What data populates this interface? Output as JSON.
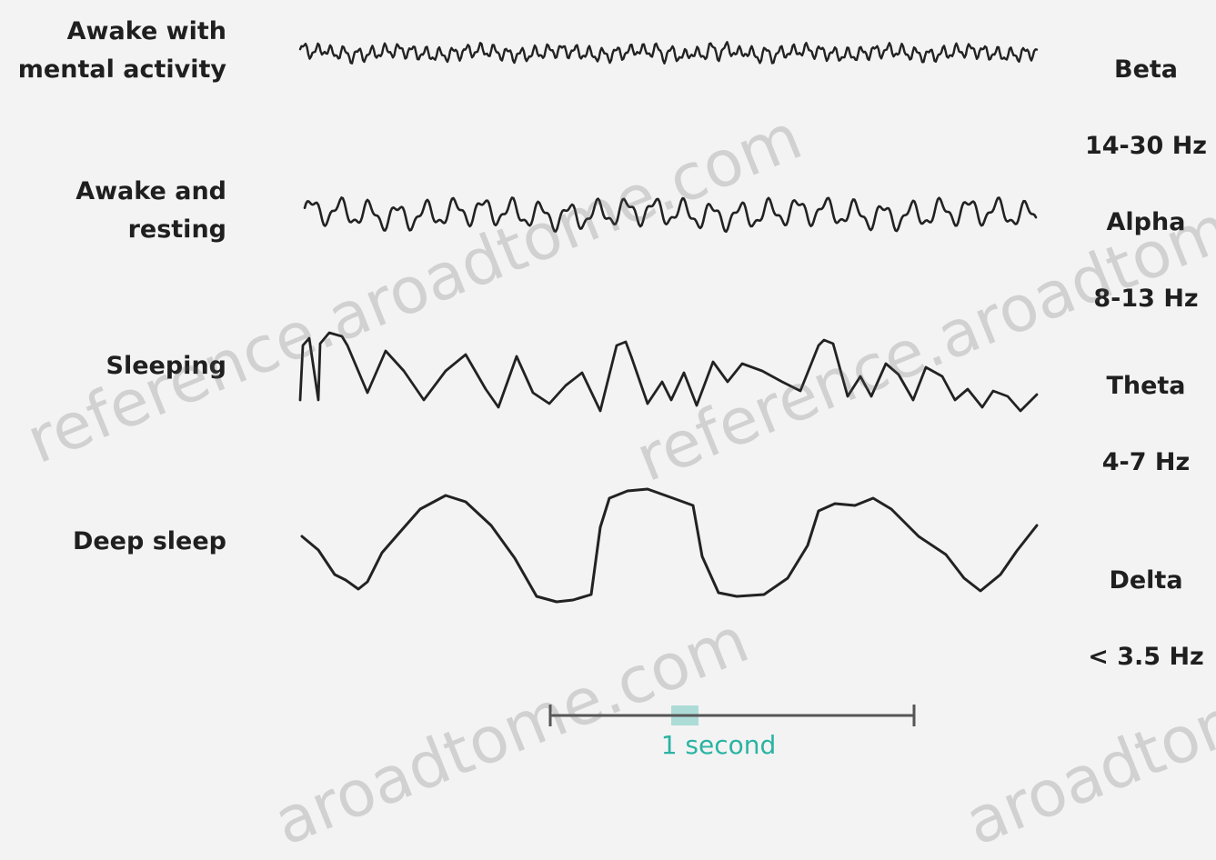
{
  "rows": [
    {
      "state": "Awake with\nmental activity",
      "wave": "Beta",
      "range": "14-30 Hz"
    },
    {
      "state": "Awake and\nresting",
      "wave": "Alpha",
      "range": "8-13 Hz"
    },
    {
      "state": "Sleeping",
      "wave": "Theta",
      "range": "4-7 Hz"
    },
    {
      "state": "Deep sleep",
      "wave": "Delta",
      "range": "< 3.5 Hz"
    }
  ],
  "scale_bar": {
    "label": "1 second"
  },
  "watermarks": [
    "reference.aroadtome.com",
    "reference.aroadtome.com",
    "aroadtome.com",
    "aroadtome.com"
  ],
  "colors": {
    "trace": "#222222",
    "scale_line": "#555555",
    "scale_accent": "#2ab3a3"
  }
}
